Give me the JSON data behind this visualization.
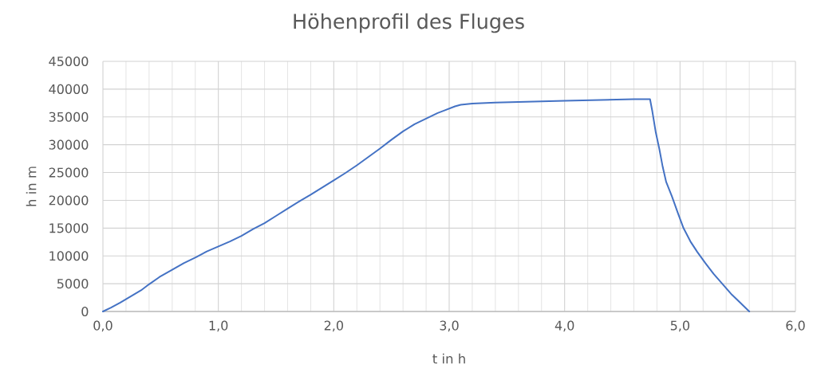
{
  "chart_data": {
    "type": "line",
    "title": "Höhenprofil des Fluges",
    "xlabel": "t in h",
    "ylabel": "h in m",
    "x": [
      0,
      0.07,
      0.15,
      0.24,
      0.33,
      0.4,
      0.49,
      0.6,
      0.7,
      0.81,
      0.9,
      1.0,
      1.1,
      1.2,
      1.3,
      1.4,
      1.5,
      1.6,
      1.7,
      1.8,
      1.9,
      2.0,
      2.1,
      2.2,
      2.3,
      2.4,
      2.5,
      2.6,
      2.7,
      2.8,
      2.9,
      2.95,
      3.0,
      3.05,
      3.1,
      3.15,
      3.2,
      3.4,
      3.6,
      3.8,
      4.0,
      4.2,
      4.4,
      4.6,
      4.74,
      4.76,
      4.79,
      4.82,
      4.85,
      4.88,
      4.93,
      4.98,
      5.03,
      5.09,
      5.15,
      5.22,
      5.29,
      5.37,
      5.45,
      5.52,
      5.6
    ],
    "values": [
      0,
      700,
      1600,
      2700,
      3800,
      4900,
      6200,
      7500,
      8700,
      9800,
      10800,
      11700,
      12600,
      13600,
      14800,
      15900,
      17200,
      18500,
      19800,
      21000,
      22300,
      23600,
      24900,
      26300,
      27800,
      29300,
      30900,
      32400,
      33700,
      34700,
      35700,
      36100,
      36500,
      36900,
      37200,
      37300,
      37400,
      37600,
      37700,
      37800,
      37900,
      38000,
      38100,
      38200,
      38200,
      36000,
      32200,
      29300,
      26000,
      23300,
      20700,
      17800,
      15000,
      12600,
      10700,
      8700,
      6800,
      4900,
      3000,
      1600,
      0
    ],
    "color": "#4472c4",
    "xlim": [
      0,
      6
    ],
    "ylim": [
      0,
      45000
    ],
    "xticks": [
      {
        "value": 0,
        "label": "0,0"
      },
      {
        "value": 0.2,
        "label": null
      },
      {
        "value": 0.4,
        "label": null
      },
      {
        "value": 0.6,
        "label": null
      },
      {
        "value": 0.8,
        "label": null
      },
      {
        "value": 1,
        "label": "1,0"
      },
      {
        "value": 1.2,
        "label": null
      },
      {
        "value": 1.4,
        "label": null
      },
      {
        "value": 1.6,
        "label": null
      },
      {
        "value": 1.8,
        "label": null
      },
      {
        "value": 2,
        "label": "2,0"
      },
      {
        "value": 2.2,
        "label": null
      },
      {
        "value": 2.4,
        "label": null
      },
      {
        "value": 2.6,
        "label": null
      },
      {
        "value": 2.8,
        "label": null
      },
      {
        "value": 3,
        "label": "3,0"
      },
      {
        "value": 3.2,
        "label": null
      },
      {
        "value": 3.4,
        "label": null
      },
      {
        "value": 3.6,
        "label": null
      },
      {
        "value": 3.8,
        "label": null
      },
      {
        "value": 4,
        "label": "4,0"
      },
      {
        "value": 4.2,
        "label": null
      },
      {
        "value": 4.4,
        "label": null
      },
      {
        "value": 4.6,
        "label": null
      },
      {
        "value": 4.8,
        "label": null
      },
      {
        "value": 5,
        "label": "5,0"
      },
      {
        "value": 5.2,
        "label": null
      },
      {
        "value": 5.4,
        "label": null
      },
      {
        "value": 5.6,
        "label": null
      },
      {
        "value": 5.8,
        "label": null
      },
      {
        "value": 6,
        "label": "6,0"
      }
    ],
    "yticks": [
      0,
      5000,
      10000,
      15000,
      20000,
      25000,
      30000,
      35000,
      40000,
      45000
    ],
    "grid": true
  }
}
